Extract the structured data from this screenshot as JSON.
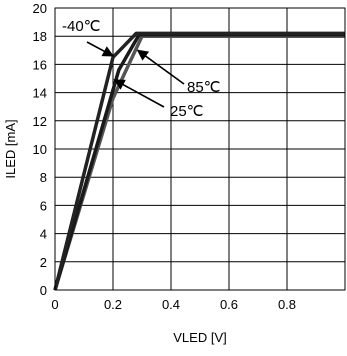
{
  "chart_data": {
    "type": "line",
    "title": "",
    "xlabel": "VLED [V]",
    "ylabel": "ILED [mA]",
    "xlim": [
      0,
      1.0
    ],
    "ylim": [
      0,
      20
    ],
    "x_ticks": [
      "0",
      "0.2",
      "0.4",
      "0.6",
      "0.8"
    ],
    "y_ticks": [
      "0",
      "2",
      "4",
      "6",
      "8",
      "10",
      "12",
      "14",
      "16",
      "18",
      "20"
    ],
    "grid": true,
    "series": [
      {
        "name": "-40℃",
        "color": "#222222",
        "points": [
          [
            0,
            0
          ],
          [
            0.2,
            16.5
          ],
          [
            0.28,
            18.2
          ],
          [
            1.0,
            18.2
          ]
        ]
      },
      {
        "name": "85℃",
        "color": "#1a1a1a",
        "points": [
          [
            0,
            0
          ],
          [
            0.22,
            15.6
          ],
          [
            0.29,
            18.1
          ],
          [
            1.0,
            18.1
          ]
        ]
      },
      {
        "name": "25℃",
        "color": "#555555",
        "points": [
          [
            0,
            0
          ],
          [
            0.2,
            13.6
          ],
          [
            0.3,
            18.0
          ],
          [
            1.0,
            18.0
          ]
        ]
      }
    ],
    "annotations": [
      {
        "text": "-40℃",
        "points_to": [
          0.2,
          16.6
        ]
      },
      {
        "text": "85℃",
        "points_to": [
          0.285,
          17.0
        ]
      },
      {
        "text": "25℃",
        "points_to": [
          0.205,
          14.9
        ]
      }
    ]
  }
}
